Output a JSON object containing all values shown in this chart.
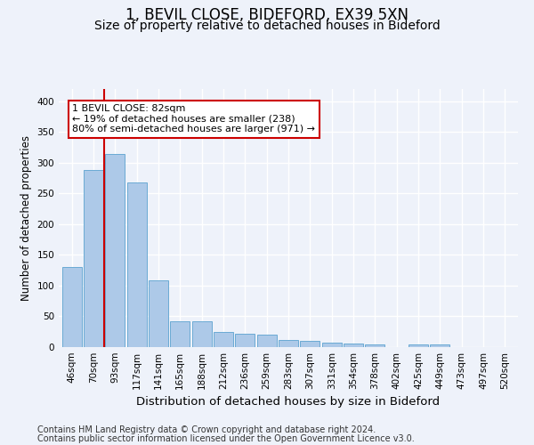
{
  "title_line1": "1, BEVIL CLOSE, BIDEFORD, EX39 5XN",
  "title_line2": "Size of property relative to detached houses in Bideford",
  "xlabel": "Distribution of detached houses by size in Bideford",
  "ylabel": "Number of detached properties",
  "footer_line1": "Contains HM Land Registry data © Crown copyright and database right 2024.",
  "footer_line2": "Contains public sector information licensed under the Open Government Licence v3.0.",
  "categories": [
    "46sqm",
    "70sqm",
    "93sqm",
    "117sqm",
    "141sqm",
    "165sqm",
    "188sqm",
    "212sqm",
    "236sqm",
    "259sqm",
    "283sqm",
    "307sqm",
    "331sqm",
    "354sqm",
    "378sqm",
    "402sqm",
    "425sqm",
    "449sqm",
    "473sqm",
    "497sqm",
    "520sqm"
  ],
  "values": [
    130,
    288,
    314,
    268,
    108,
    42,
    42,
    25,
    22,
    21,
    11,
    10,
    7,
    6,
    4,
    0,
    5,
    5,
    0,
    0,
    0
  ],
  "bar_color": "#adc9e8",
  "bar_edge_color": "#6aaad4",
  "vline_x": 1.5,
  "vline_color": "#cc0000",
  "annotation_text": "1 BEVIL CLOSE: 82sqm\n← 19% of detached houses are smaller (238)\n80% of semi-detached houses are larger (971) →",
  "annotation_box_color": "white",
  "annotation_box_edge_color": "#cc0000",
  "ylim": [
    0,
    420
  ],
  "yticks": [
    0,
    50,
    100,
    150,
    200,
    250,
    300,
    350,
    400
  ],
  "background_color": "#eef2fa",
  "grid_color": "#ffffff",
  "title1_fontsize": 12,
  "title2_fontsize": 10,
  "xlabel_fontsize": 9.5,
  "ylabel_fontsize": 8.5,
  "tick_fontsize": 7.5,
  "annotation_fontsize": 8,
  "footer_fontsize": 7
}
